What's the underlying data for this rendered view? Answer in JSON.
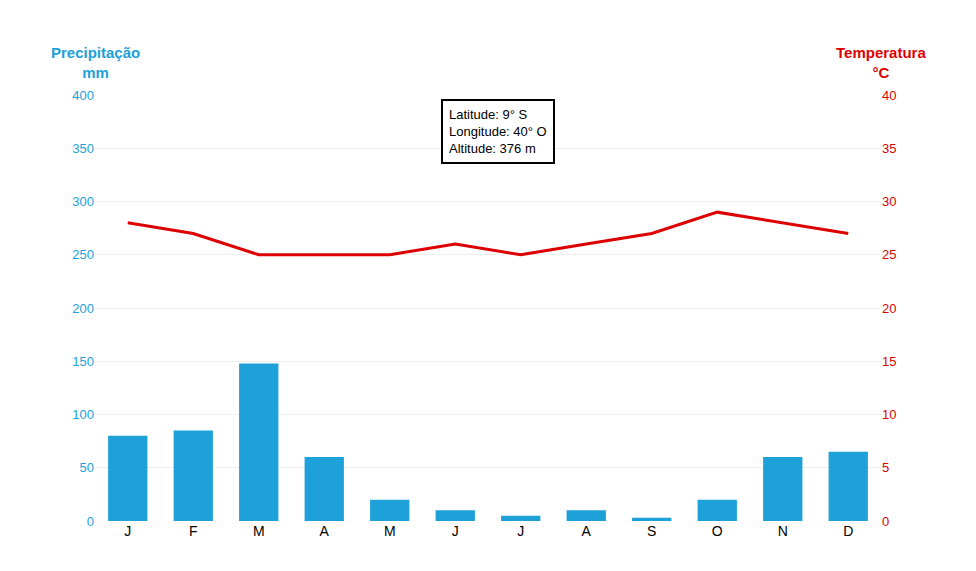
{
  "chart_data": {
    "type": "bar",
    "categories": [
      "J",
      "F",
      "M",
      "A",
      "M",
      "J",
      "J",
      "A",
      "S",
      "O",
      "N",
      "D"
    ],
    "series": [
      {
        "type": "bar",
        "color": "#1da1d8",
        "values": [
          80,
          85,
          148,
          60,
          20,
          10,
          5,
          10,
          3,
          20,
          60,
          65
        ]
      },
      {
        "type": "line",
        "axis": "y2",
        "color": "#dd0000",
        "values": [
          28,
          27,
          25,
          25,
          25,
          26,
          25,
          26,
          27,
          29,
          28,
          27
        ]
      }
    ],
    "ylabel": "Precipitação\nmm",
    "y2label": "Temperatura\n°C",
    "ylim": [
      0,
      400
    ],
    "yticks": [
      0,
      50,
      100,
      150,
      200,
      250,
      300,
      350,
      400
    ],
    "y2lim": [
      0,
      40
    ],
    "y2ticks": [
      0,
      5,
      10,
      15,
      20,
      25,
      30,
      35,
      40
    ],
    "annotations": [
      {
        "text": "Latitude: 9° S\nLongitude: 40° O\nAltitude: 376 m"
      }
    ],
    "grid": true
  }
}
